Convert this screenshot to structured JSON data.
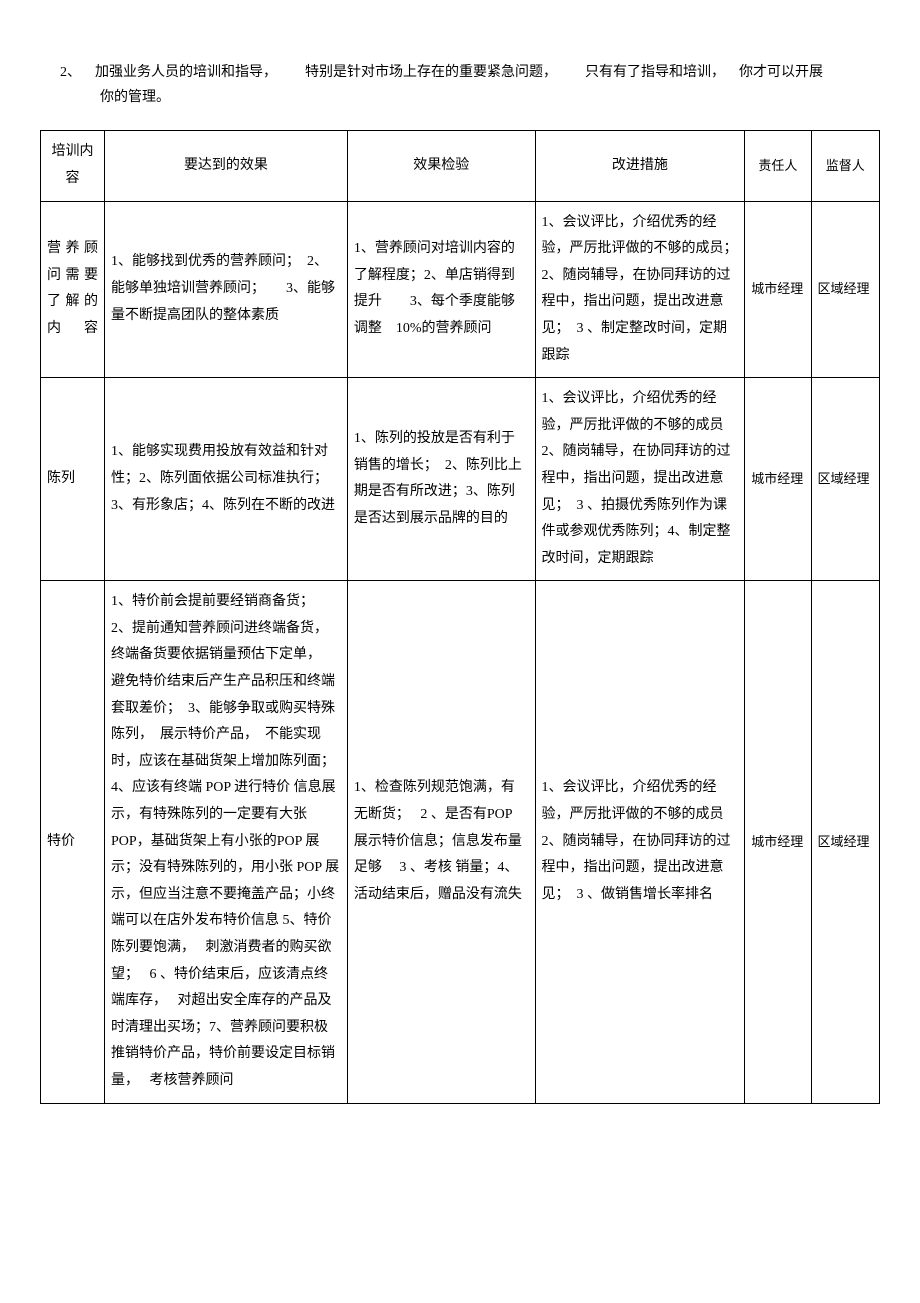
{
  "intro": {
    "num": "2、",
    "seg1": "加强业务人员的培训和指导，",
    "seg2": "特别是针对市场上存在的重要紧急问题，",
    "seg3": "只有有了指导和培训，",
    "seg4": "你才可以开展",
    "line2": "你的管理。"
  },
  "headers": {
    "topic": "培训内容",
    "effect": "要达到的效果",
    "check": "效果检验",
    "measure": "改进措施",
    "resp": "责任人",
    "sup": "监督人"
  },
  "rows": [
    {
      "topic": "营 养 顾问 需 要了 解 的内容",
      "effect": "1、能够找到优秀的营养顾问；　2、能够单独培训营养顾问；　　3、能够 量不断提高团队的整体素质",
      "check": "1、营养顾问对培训内容的了解程度；2、单店销得到提升　　3、每个季度能够调整　10%的营养顾问",
      "measure": "1、会议评比，介绍优秀的经验，严厉批评做的不够的成员；2、随岗辅导，在协同拜访的过程中，指出问题，提出改进意见；　3 、制定整改时间，定期跟踪",
      "resp": "城市经理",
      "sup": "区域经理"
    },
    {
      "topic": "陈列",
      "effect": "1、能够实现费用投放有效益和针对性；2、陈列面依据公司标准执行；3、有形象店；4、陈列在不断的改进",
      "check": "1、陈列的投放是否有利于销售的增长；　2、陈列比上期是否有所改进；3、陈列是否达到展示品牌的目的",
      "measure": "1、会议评比，介绍优秀的经验，严厉批评做的不够的成员 2、随岗辅导，在协同拜访的过程中，指出问题，提出改进意见；　3 、拍摄优秀陈列作为课件或参观优秀陈列；4、制定整改时间，定期跟踪",
      "resp": "城市经理",
      "sup": "区域经理"
    },
    {
      "topic": "特价",
      "effect": "1、特价前会提前要经销商备货；　2、提前通知营养顾问进终端备货，　　终端备货要依据销量预估下定单，　　避免特价结束后产生产品积压和终端套取差价；　3、能够争取或购买特殊陈列，　展示特价产品，　不能实现时，应该在基础货架上增加陈列面；4、应该有终端 POP 进行特价 信息展示，有特殊陈列的一定要有大张 POP，基础货架上有小张的POP 展示；没有特殊陈列的，用小张 POP 展示，但应当注意不要掩盖产品；小终端可以在店外发布特价信息 5、特价陈列要饱满，　 刺激消费者的购买欲望；　 6 、特价结束后，应该清点终端库存，　 对超出安全库存的产品及时清理出买场；7、营养顾问要积极推销特价产品，特价前要设定目标销量，　 考核营养顾问",
      "check": "1、检查陈列规范饱满，有无断货；　 2 、是否有POP 展示特价信息；信息发布量足够　 3 、考核 销量；4、活动结束后，赠品没有流失",
      "measure": "1、会议评比，介绍优秀的经验，严厉批评做的不够的成员 2、随岗辅导，在协同拜访的过程中，指出问题，提出改进意见；　3 、做销售增长率排名",
      "resp": "城市经理",
      "sup": "区域经理"
    }
  ]
}
